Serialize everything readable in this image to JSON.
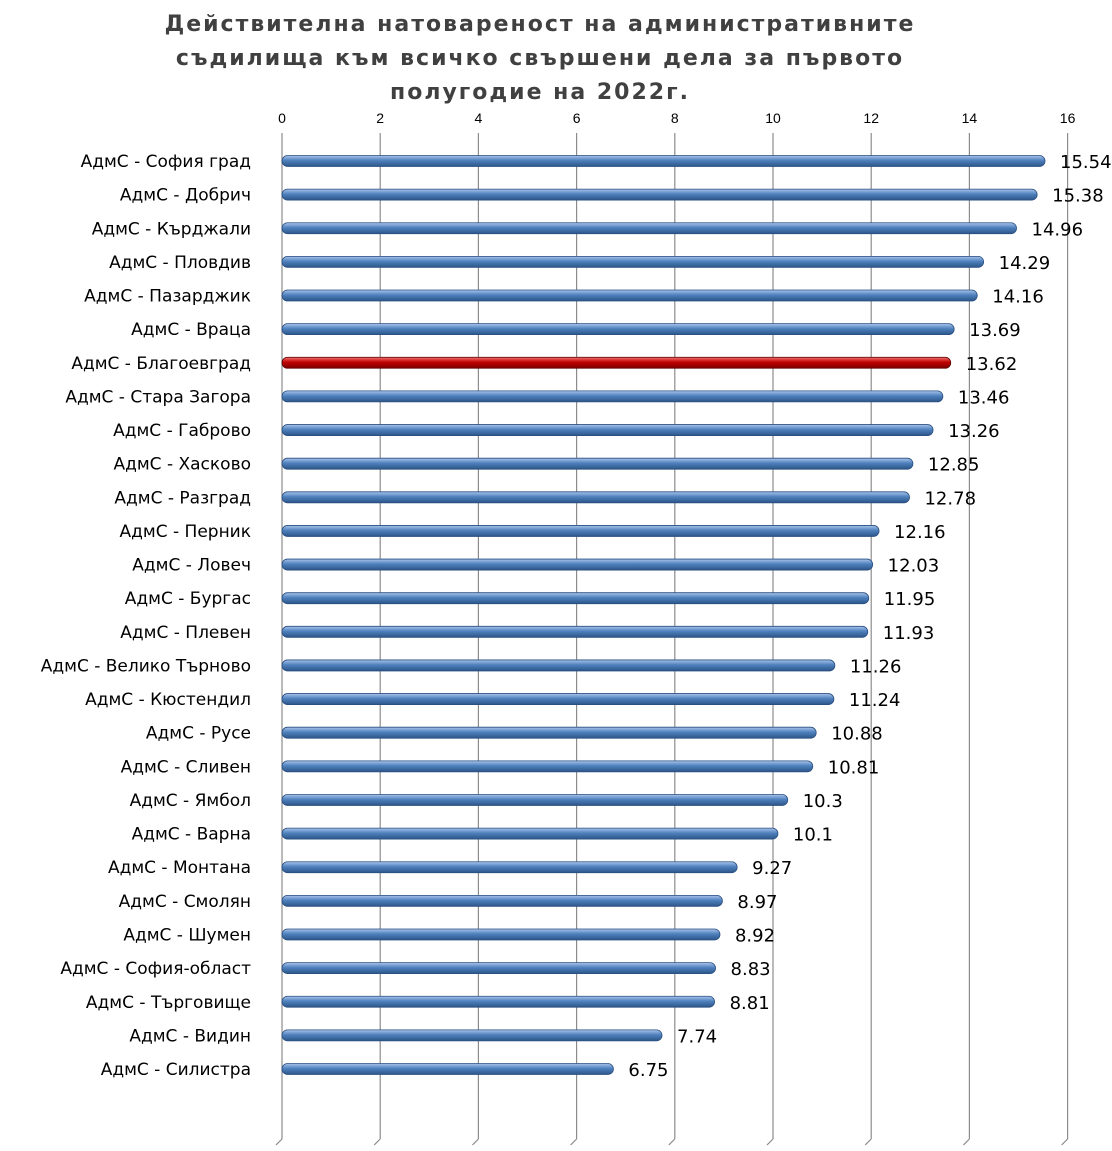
{
  "chart_data": {
    "type": "bar",
    "orientation": "horizontal",
    "title": "Действителна натовареност на административните съдилища към всичко свършени дела за първото полугодие на 2022г.",
    "xlim": [
      0,
      16
    ],
    "ticks": [
      "0",
      "2",
      "4",
      "6",
      "8",
      "10",
      "12",
      "14",
      "16"
    ],
    "tick_values": [
      0,
      2,
      4,
      6,
      8,
      10,
      12,
      14,
      16
    ],
    "grid": "vertical",
    "legend": "none",
    "categories": [
      "АдмС - София град",
      "АдмС - Добрич",
      "АдмС - Кърджали",
      "АдмС - Пловдив",
      "АдмС - Пазарджик",
      "АдмС - Враца",
      "АдмС - Благоевград",
      "АдмС - Стара Загора",
      "АдмС - Габрово",
      "АдмС - Хасково",
      "АдмС - Разград",
      "АдмС - Перник",
      "АдмС - Ловеч",
      "АдмС - Бургас",
      "АдмС - Плевен",
      "АдмС - Велико Търново",
      "АдмС - Кюстендил",
      "АдмС - Русе",
      "АдмС - Сливен",
      "АдмС - Ямбол ",
      "АдмС - Варна",
      "АдмС - Монтана",
      "АдмС - Смолян",
      "АдмС - Шумен",
      "АдмС - София-област",
      "АдмС - Търговище",
      "АдмС - Видин",
      "АдмС - Силистра"
    ],
    "values": [
      15.54,
      15.38,
      14.96,
      14.29,
      14.16,
      13.69,
      13.62,
      13.46,
      13.26,
      12.85,
      12.78,
      12.16,
      12.03,
      11.95,
      11.93,
      11.26,
      11.24,
      10.88,
      10.81,
      10.3,
      10.1,
      9.27,
      8.97,
      8.92,
      8.83,
      8.81,
      7.74,
      6.75
    ],
    "value_labels": [
      "15.54",
      "15.38",
      "14.96",
      "14.29",
      "14.16",
      "13.69",
      "13.62",
      "13.46",
      "13.26",
      "12.85",
      "12.78",
      "12.16",
      "12.03",
      "11.95",
      "11.93",
      "11.26",
      "11.24",
      "10.88",
      "10.81",
      "10.3",
      "10.1",
      "9.27",
      "8.97",
      "8.92",
      "8.83",
      "8.81",
      "7.74",
      "6.75"
    ],
    "highlight_category": "АдмС - Благоевград",
    "colors": {
      "bar": "#4a7ebb",
      "highlight": "#c00000",
      "grid": "#8c8c8c"
    }
  }
}
